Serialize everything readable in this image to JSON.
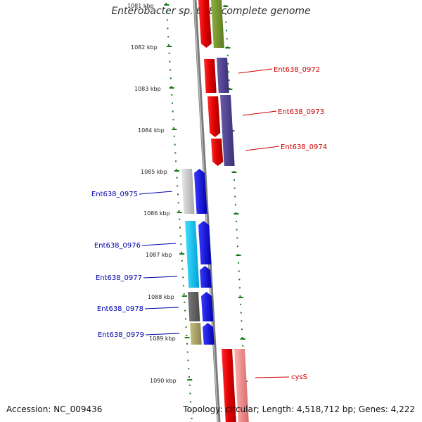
{
  "title": "Enterobacter sp. 638, complete genome",
  "accession": "Accession: NC_009436",
  "topology": "Topology: circular; Length: 4,518,712 bp; Genes: 4,222",
  "colors": {
    "forward_label": "#cc0000",
    "reverse_label": "#0000aa",
    "tick": "#1a7a1a",
    "backbone": "#888888"
  },
  "kbp_labels": [
    "1081 kbp",
    "1082 kbp",
    "1083 kbp",
    "1084 kbp",
    "1085 kbp",
    "1086 kbp",
    "1087 kbp",
    "1088 kbp",
    "1089 kbp",
    "1090 kbp"
  ],
  "gene_labels": [
    {
      "text": "Ent638_0972",
      "strand": "forward"
    },
    {
      "text": "Ent638_0973",
      "strand": "forward"
    },
    {
      "text": "Ent638_0974",
      "strand": "forward"
    },
    {
      "text": "Ent638_0975",
      "strand": "reverse"
    },
    {
      "text": "Ent638_0976",
      "strand": "reverse"
    },
    {
      "text": "Ent638_0977",
      "strand": "reverse"
    },
    {
      "text": "Ent638_0978",
      "strand": "reverse"
    },
    {
      "text": "Ent638_0979",
      "strand": "reverse"
    },
    {
      "text": "cysS",
      "strand": "forward"
    }
  ]
}
